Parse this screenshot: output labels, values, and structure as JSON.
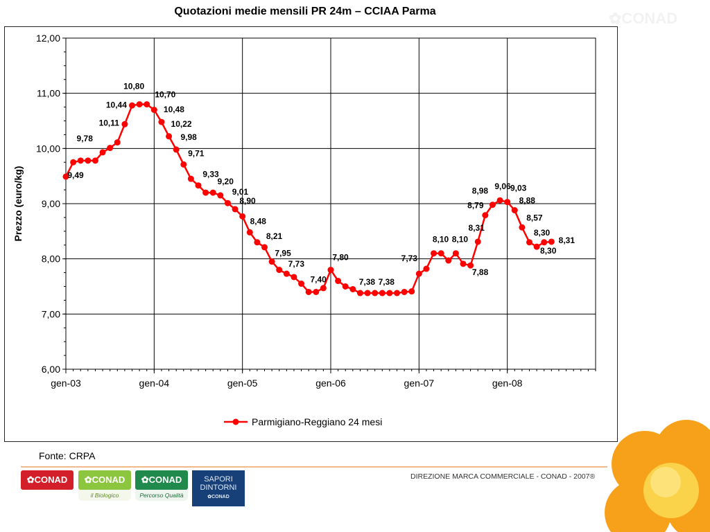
{
  "slide": {
    "title": "Quotazioni medie mensili PR 24m – CCIAA Parma",
    "source": "Fonte: CRPA",
    "footer": "DIREZIONE MARCA COMMERCIALE - CONAD - 2007®",
    "top_logo": "✿CONAD"
  },
  "logos": [
    {
      "label": "✿CONAD",
      "sub": "",
      "bg": "#d21f2a"
    },
    {
      "label": "✿CONAD",
      "sub": "il Biologico",
      "bg": "#8cc63f"
    },
    {
      "label": "✿CONAD",
      "sub": "Percorso Qualità",
      "bg": "#1f8a4c"
    }
  ],
  "sapori": {
    "line1": "SAPORI",
    "line2": "DINTORNI",
    "line3": "✿CONAD"
  },
  "chart_data": {
    "type": "line",
    "ylabel": "Prezzo (euro/kg)",
    "ylim": [
      6.0,
      12.0
    ],
    "yticks": [
      "6,00",
      "7,00",
      "8,00",
      "9,00",
      "10,00",
      "11,00",
      "12,00"
    ],
    "xticks": [
      "gen-03",
      "gen-04",
      "gen-05",
      "gen-06",
      "gen-07",
      "gen-08"
    ],
    "x_start": "gen-03",
    "legend_position": "bottom",
    "grid": true,
    "series": [
      {
        "name": "Parmigiano-Reggiano 24 mesi",
        "color": "#ff0000",
        "values": [
          9.49,
          9.75,
          9.78,
          9.78,
          9.78,
          9.93,
          10.01,
          10.11,
          10.44,
          10.78,
          10.8,
          10.8,
          10.7,
          10.48,
          10.22,
          9.98,
          9.71,
          9.45,
          9.33,
          9.2,
          9.2,
          9.15,
          9.01,
          8.9,
          8.77,
          8.48,
          8.3,
          8.21,
          7.95,
          7.8,
          7.73,
          7.67,
          7.55,
          7.4,
          7.4,
          7.47,
          7.8,
          7.6,
          7.5,
          7.45,
          7.38,
          7.38,
          7.38,
          7.38,
          7.38,
          7.38,
          7.4,
          7.41,
          7.73,
          7.82,
          8.1,
          8.1,
          7.97,
          8.1,
          7.91,
          7.88,
          8.31,
          8.79,
          8.98,
          9.06,
          9.03,
          8.88,
          8.57,
          8.3,
          8.22,
          8.3,
          8.31
        ]
      }
    ],
    "data_labels": [
      {
        "i": 0,
        "text": "9,49"
      },
      {
        "i": 2,
        "text": "9,78"
      },
      {
        "i": 7,
        "text": "10,11"
      },
      {
        "i": 8,
        "text": "10,44"
      },
      {
        "i": 10,
        "text": "10,80"
      },
      {
        "i": 12,
        "text": "10,70"
      },
      {
        "i": 13,
        "text": "10,48"
      },
      {
        "i": 14,
        "text": "10,22"
      },
      {
        "i": 15,
        "text": "9,98"
      },
      {
        "i": 16,
        "text": "9,71"
      },
      {
        "i": 18,
        "text": "9,33"
      },
      {
        "i": 20,
        "text": "9,20"
      },
      {
        "i": 22,
        "text": "9,01"
      },
      {
        "i": 23,
        "text": "8,90"
      },
      {
        "i": 25,
        "text": "8,48"
      },
      {
        "i": 27,
        "text": "8,21"
      },
      {
        "i": 28,
        "text": "7,95"
      },
      {
        "i": 30,
        "text": "7,73"
      },
      {
        "i": 33,
        "text": "7,40"
      },
      {
        "i": 36,
        "text": "7,80"
      },
      {
        "i": 40,
        "text": "7,38"
      },
      {
        "i": 43,
        "text": "7,38"
      },
      {
        "i": 48,
        "text": "7,73"
      },
      {
        "i": 50,
        "text": "8,10"
      },
      {
        "i": 53,
        "text": "8,10"
      },
      {
        "i": 55,
        "text": "7,88"
      },
      {
        "i": 56,
        "text": "8,31"
      },
      {
        "i": 57,
        "text": "8,79"
      },
      {
        "i": 58,
        "text": "8,98"
      },
      {
        "i": 59,
        "text": "9,06"
      },
      {
        "i": 60,
        "text": "9,03"
      },
      {
        "i": 61,
        "text": "8,88"
      },
      {
        "i": 62,
        "text": "8,57"
      },
      {
        "i": 63,
        "text": "8,30"
      },
      {
        "i": 65,
        "text": "8,30"
      },
      {
        "i": 66,
        "text": "8,31"
      }
    ]
  }
}
